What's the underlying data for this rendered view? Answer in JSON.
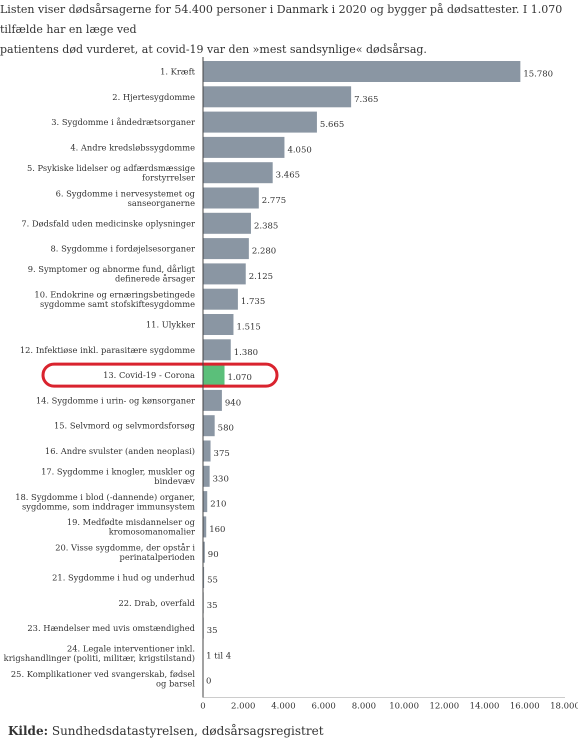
{
  "intro": {
    "line1": "Listen viser dødsårsagerne for 54.400 personer i Danmark i 2020 og bygger på dødsattester. I 1.070 tilfælde har en læge ved",
    "line2": "patientens død vurderet, at covid-19 var den »mest sandsynlige« dødsårsag."
  },
  "source": {
    "label": "Kilde:",
    "text": "Sundhedsdatastyrelsen, dødsårsagsregistret"
  },
  "colors": {
    "bar": "#8a96a3",
    "highlight_bar": "#5bbf7a",
    "highlight_ring": "#d9232e",
    "axis": "#444444"
  },
  "chart_data": {
    "type": "bar",
    "orientation": "horizontal",
    "xlim": [
      0,
      18000
    ],
    "ticks": [
      0,
      2000,
      4000,
      6000,
      8000,
      10000,
      12000,
      14000,
      16000,
      18000
    ],
    "tick_labels": [
      "0",
      "2.000",
      "4.000",
      "6.000",
      "8.000",
      "10.000",
      "12.000",
      "14.000",
      "16.000",
      "18.000"
    ],
    "highlight_index": 12,
    "categories": [
      [
        "1. Kræft"
      ],
      [
        "2. Hjertesygdomme"
      ],
      [
        "3. Sygdomme i åndedrætsorganer"
      ],
      [
        "4. Andre kredsløbssygdomme"
      ],
      [
        "5. Psykiske lidelser og adfærdsmæssige",
        "forstyrrelser"
      ],
      [
        "6. Sygdomme i nervesystemet og",
        "sanseorganerne"
      ],
      [
        "7. Dødsfald uden medicinske oplysninger"
      ],
      [
        "8. Sygdomme i fordøjelsesorganer"
      ],
      [
        "9. Symptomer og abnorme fund, dårligt",
        "definerede årsager"
      ],
      [
        "10. Endokrine og ernæringsbetingede",
        "sygdomme samt stofskiftesygdomme"
      ],
      [
        "11. Ulykker"
      ],
      [
        "12. Infektiøse inkl. parasitære sygdomme"
      ],
      [
        "13. Covid-19 - Corona"
      ],
      [
        "14. Sygdomme i urin- og kønsorganer"
      ],
      [
        "15. Selvmord og selvmordsforsøg"
      ],
      [
        "16. Andre svulster (anden neoplasi)"
      ],
      [
        "17. Sygdomme i knogler, muskler og",
        "bindevæv"
      ],
      [
        "18. Sygdomme i blod (-dannende) organer,",
        "sygdomme, som inddrager immunsystem"
      ],
      [
        "19. Medfødte misdannelser og",
        "kromosomanomalier"
      ],
      [
        "20. Visse sygdomme, der opstår i",
        "perinatalperioden"
      ],
      [
        "21. Sygdomme i hud og underhud"
      ],
      [
        "22. Drab, overfald"
      ],
      [
        "23. Hændelser med uvis omstændighed"
      ],
      [
        "24. Legale interventioner inkl.",
        "krigshandlinger (politi, militær, krigstilstand)"
      ],
      [
        "25. Komplikationer ved svangerskab, fødsel",
        "og barsel"
      ]
    ],
    "values": [
      15780,
      7365,
      5665,
      4050,
      3465,
      2775,
      2385,
      2280,
      2125,
      1735,
      1515,
      1380,
      1070,
      940,
      580,
      375,
      330,
      210,
      160,
      90,
      55,
      35,
      35,
      4,
      0
    ],
    "value_labels": [
      "15.780",
      "7.365",
      "5.665",
      "4.050",
      "3.465",
      "2.775",
      "2.385",
      "2.280",
      "2.125",
      "1.735",
      "1.515",
      "1.380",
      "1.070",
      "940",
      "580",
      "375",
      "330",
      "210",
      "160",
      "90",
      "55",
      "35",
      "35",
      "1 til 4",
      "0"
    ]
  }
}
